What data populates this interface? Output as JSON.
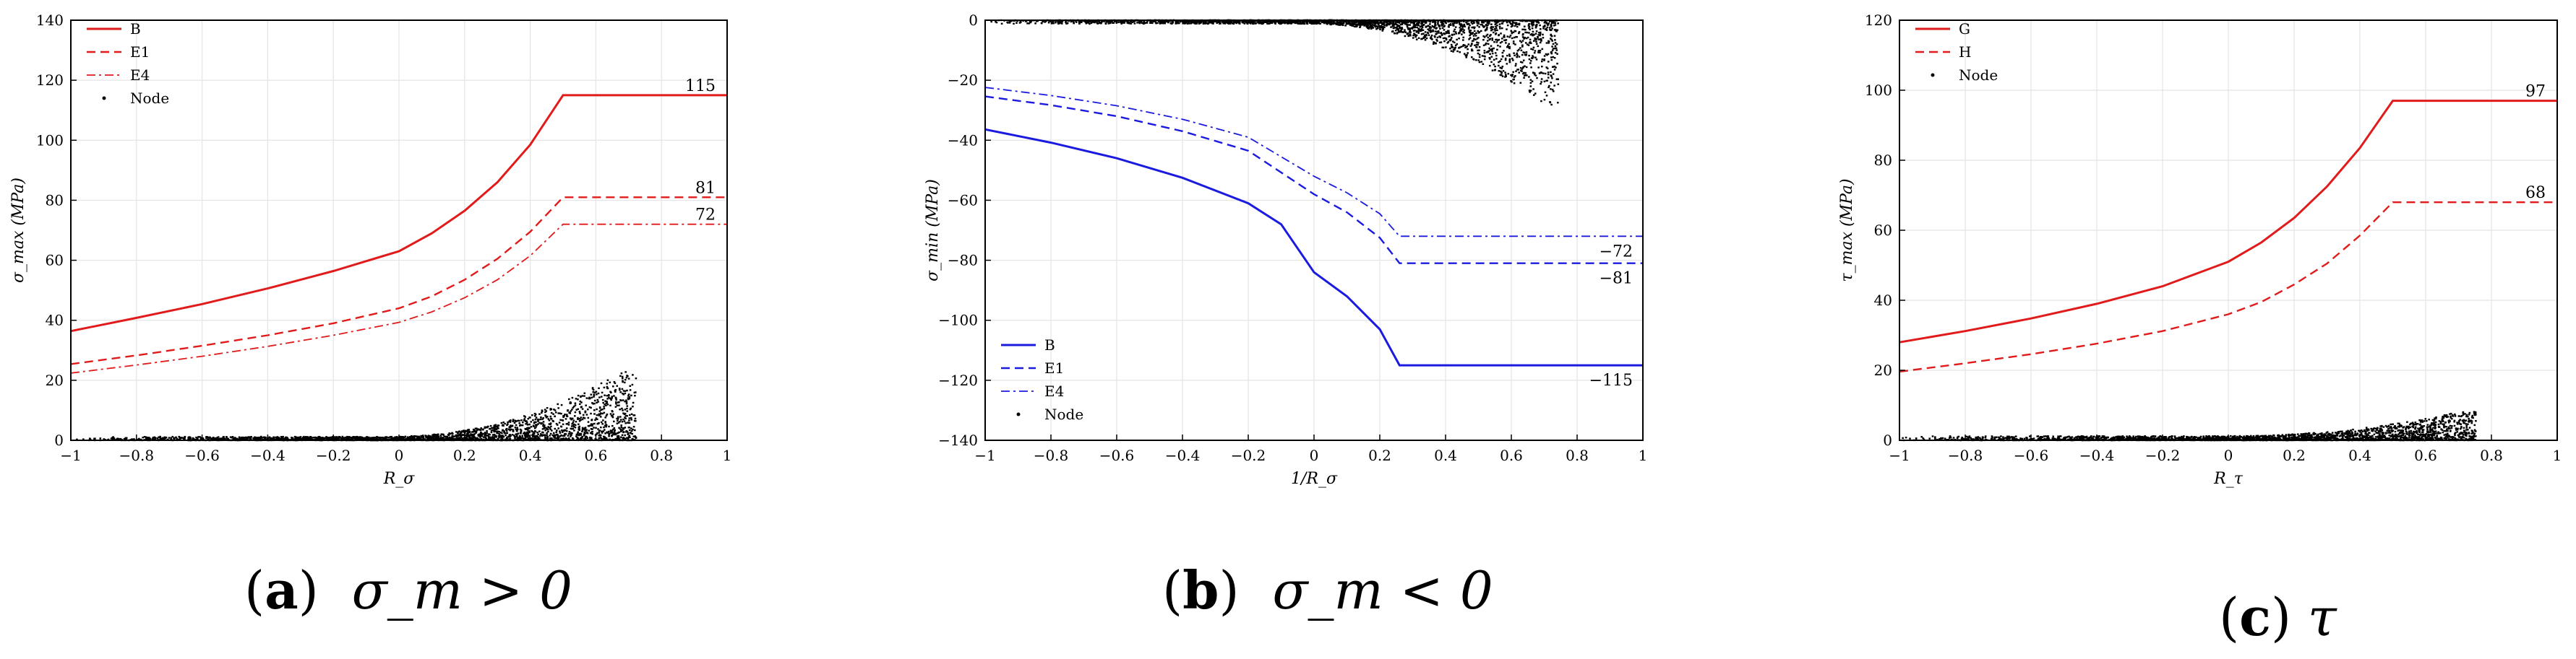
{
  "colors": {
    "red": "#e11b1b",
    "blue": "#1b1be0",
    "grid": "#e4e4e4",
    "node": "#000000"
  },
  "chart_data": [
    {
      "type": "line",
      "xlabel": "R_σ",
      "ylabel": "σ_max (MPa)",
      "xlim": [
        -1,
        1
      ],
      "ylim": [
        0,
        140
      ],
      "xticks": [
        "−1",
        "−0.8",
        "−0.6",
        "−0.4",
        "−0.2",
        "0",
        "0.2",
        "0.4",
        "0.6",
        "0.8",
        "1"
      ],
      "yticks": [
        "0",
        "20",
        "40",
        "60",
        "80",
        "100",
        "120",
        "140"
      ],
      "legend": [
        "B",
        "E1",
        "E4",
        "Node"
      ],
      "legend_position": "top-left",
      "grid": true,
      "series": [
        {
          "name": "B",
          "style": "solid",
          "color": "red",
          "points": [
            [
              -1,
              36.4
            ],
            [
              -0.8,
              40.8
            ],
            [
              -0.6,
              45.4
            ],
            [
              -0.4,
              50.6
            ],
            [
              -0.2,
              56.4
            ],
            [
              0,
              63.0
            ],
            [
              0.1,
              69.0
            ],
            [
              0.2,
              76.5
            ],
            [
              0.3,
              86.0
            ],
            [
              0.4,
              98.5
            ],
            [
              0.5,
              115
            ],
            [
              1,
              115
            ]
          ]
        },
        {
          "name": "E1",
          "style": "dashed",
          "color": "red",
          "points": [
            [
              -1,
              25.4
            ],
            [
              -0.8,
              28.3
            ],
            [
              -0.6,
              31.5
            ],
            [
              -0.4,
              35.0
            ],
            [
              -0.2,
              39.0
            ],
            [
              0,
              44.0
            ],
            [
              0.1,
              48.0
            ],
            [
              0.2,
              53.5
            ],
            [
              0.3,
              60.5
            ],
            [
              0.4,
              69.5
            ],
            [
              0.5,
              81
            ],
            [
              1,
              81
            ]
          ]
        },
        {
          "name": "E4",
          "style": "dashdot",
          "color": "red",
          "points": [
            [
              -1,
              22.4
            ],
            [
              -0.8,
              25.1
            ],
            [
              -0.6,
              28.0
            ],
            [
              -0.4,
              31.3
            ],
            [
              -0.2,
              35.0
            ],
            [
              0,
              39.3
            ],
            [
              0.1,
              42.8
            ],
            [
              0.2,
              47.5
            ],
            [
              0.3,
              53.5
            ],
            [
              0.4,
              61.5
            ],
            [
              0.5,
              72
            ],
            [
              1,
              72
            ]
          ]
        }
      ],
      "node_cloud": {
        "x_start": -1,
        "x_end": 0.72,
        "y_peak": 22,
        "y_peak_x": 0.68
      },
      "annotations": [
        "115",
        "81",
        "72"
      ],
      "caption": {
        "letter": "a",
        "expr": "σ_m > 0"
      }
    },
    {
      "type": "line",
      "xlabel": "1/R_σ",
      "ylabel": "σ_min (MPa)",
      "xlim": [
        -1,
        1
      ],
      "ylim": [
        -140,
        0
      ],
      "xticks": [
        "−1",
        "−0.8",
        "−0.6",
        "−0.4",
        "−0.2",
        "0",
        "0.2",
        "0.4",
        "0.6",
        "0.8",
        "1"
      ],
      "yticks": [
        "0",
        "−20",
        "−40",
        "−60",
        "−80",
        "−100",
        "−120",
        "−140"
      ],
      "legend": [
        "B",
        "E1",
        "E4",
        "Node"
      ],
      "legend_position": "bottom-left",
      "grid": true,
      "series": [
        {
          "name": "B",
          "style": "solid",
          "color": "blue",
          "points": [
            [
              -1,
              -36.4
            ],
            [
              -0.8,
              -40.8
            ],
            [
              -0.6,
              -46
            ],
            [
              -0.4,
              -52.5
            ],
            [
              -0.2,
              -61
            ],
            [
              -0.1,
              -68
            ],
            [
              0,
              -84
            ],
            [
              0.1,
              -92
            ],
            [
              0.2,
              -103
            ],
            [
              0.26,
              -115
            ],
            [
              1,
              -115
            ]
          ]
        },
        {
          "name": "E1",
          "style": "dashed",
          "color": "blue",
          "points": [
            [
              -1,
              -25.4
            ],
            [
              -0.8,
              -28.3
            ],
            [
              -0.6,
              -32
            ],
            [
              -0.4,
              -37
            ],
            [
              -0.2,
              -43.5
            ],
            [
              0,
              -58
            ],
            [
              0.1,
              -64
            ],
            [
              0.2,
              -72.5
            ],
            [
              0.26,
              -81
            ],
            [
              1,
              -81
            ]
          ]
        },
        {
          "name": "E4",
          "style": "dashdot",
          "color": "blue",
          "points": [
            [
              -1,
              -22.4
            ],
            [
              -0.8,
              -25.1
            ],
            [
              -0.6,
              -28.5
            ],
            [
              -0.4,
              -33
            ],
            [
              -0.2,
              -39
            ],
            [
              0,
              -52
            ],
            [
              0.1,
              -57.5
            ],
            [
              0.2,
              -64.5
            ],
            [
              0.26,
              -72
            ],
            [
              1,
              -72
            ]
          ]
        }
      ],
      "node_cloud": {
        "x_start": -1,
        "x_end": 0.74,
        "y_peak": -27,
        "y_peak_x": 0.7
      },
      "annotations": [
        "−72",
        "−81",
        "−115"
      ],
      "caption": {
        "letter": "b",
        "expr": "σ_m < 0"
      }
    },
    {
      "type": "line",
      "xlabel": "R_τ",
      "ylabel": "τ_max (MPa)",
      "xlim": [
        -1,
        1
      ],
      "ylim": [
        0,
        120
      ],
      "xticks": [
        "−1",
        "−0.8",
        "−0.6",
        "−0.4",
        "−0.2",
        "0",
        "0.2",
        "0.4",
        "0.6",
        "0.8",
        "1"
      ],
      "yticks": [
        "0",
        "20",
        "40",
        "60",
        "80",
        "100",
        "120"
      ],
      "legend": [
        "G",
        "H",
        "Node"
      ],
      "legend_position": "top-left",
      "grid": true,
      "series": [
        {
          "name": "G",
          "style": "solid",
          "color": "red",
          "points": [
            [
              -1,
              28.0
            ],
            [
              -0.8,
              31.2
            ],
            [
              -0.6,
              34.8
            ],
            [
              -0.4,
              39.0
            ],
            [
              -0.2,
              44.0
            ],
            [
              0,
              51.0
            ],
            [
              0.1,
              56.5
            ],
            [
              0.2,
              63.5
            ],
            [
              0.3,
              72.5
            ],
            [
              0.4,
              83.5
            ],
            [
              0.5,
              97
            ],
            [
              1,
              97
            ]
          ]
        },
        {
          "name": "H",
          "style": "dashed",
          "color": "red",
          "points": [
            [
              -1,
              19.6
            ],
            [
              -0.8,
              22.0
            ],
            [
              -0.6,
              24.6
            ],
            [
              -0.4,
              27.6
            ],
            [
              -0.2,
              31.2
            ],
            [
              0,
              36.0
            ],
            [
              0.1,
              39.5
            ],
            [
              0.2,
              44.5
            ],
            [
              0.3,
              50.5
            ],
            [
              0.4,
              58.5
            ],
            [
              0.5,
              68
            ],
            [
              1,
              68
            ]
          ]
        }
      ],
      "node_cloud": {
        "x_start": -1,
        "x_end": 0.75,
        "y_peak": 7,
        "y_peak_x": 0.7
      },
      "annotations": [
        "97",
        "68"
      ],
      "caption": {
        "letter": "c",
        "expr": "τ"
      }
    }
  ]
}
